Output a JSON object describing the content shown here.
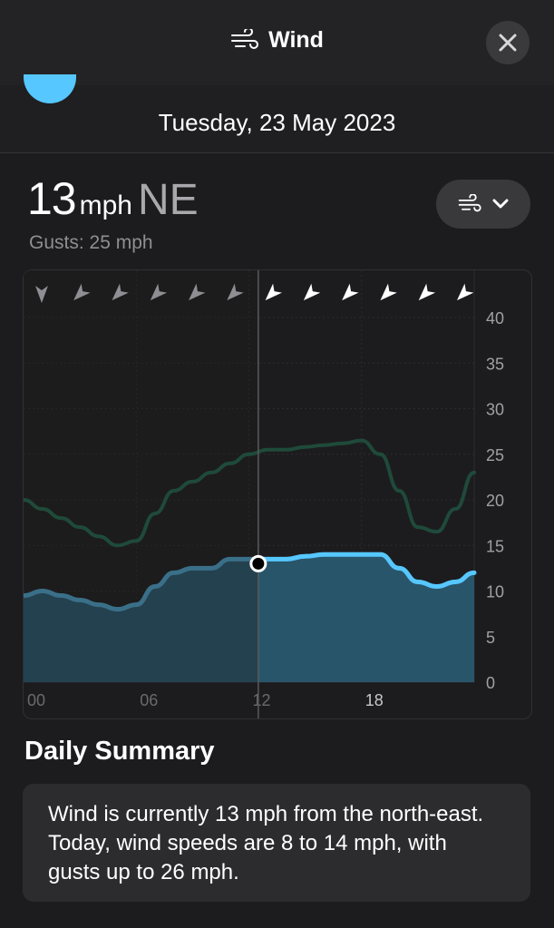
{
  "header": {
    "title": "Wind",
    "close_icon": "close-icon",
    "title_icon": "wind-icon"
  },
  "date": {
    "label": "Tuesday, 23 May 2023"
  },
  "current": {
    "speed": "13",
    "unit": "mph",
    "direction": "NE",
    "gusts": "Gusts: 25 mph"
  },
  "metric_selector": {
    "icon": "wind-icon",
    "chevron": "chevron-down-icon"
  },
  "colors": {
    "accent": "#56c7ff",
    "gust_line": "#1f4a3a",
    "area": "#2b5f78",
    "background": "#1c1c1e",
    "card": "#2c2c2e"
  },
  "chart_data": {
    "type": "area",
    "x_tick_labels": [
      "00",
      "06",
      "12",
      "18"
    ],
    "y_tick_labels": [
      "0",
      "5",
      "10",
      "15",
      "20",
      "25",
      "30",
      "35",
      "40"
    ],
    "ylim": [
      0,
      40
    ],
    "xlim": [
      0,
      24
    ],
    "grid": true,
    "current_hour": 12.5,
    "current_value": 13,
    "series": [
      {
        "x": [
          0,
          1,
          2,
          3,
          4,
          5,
          6,
          7,
          8,
          9,
          10,
          11,
          12,
          13,
          14,
          15,
          16,
          17,
          18,
          19,
          20,
          21,
          22,
          23,
          24
        ],
        "values": [
          9.5,
          10,
          9.5,
          9,
          8.5,
          8,
          8.5,
          10.5,
          12,
          12.5,
          12.5,
          13.5,
          13.5,
          13.5,
          13.5,
          13.8,
          14,
          14,
          14,
          14,
          12.5,
          11,
          10.5,
          11,
          12
        ]
      },
      {
        "x": [
          0,
          1,
          2,
          3,
          4,
          5,
          6,
          7,
          8,
          9,
          10,
          11,
          12,
          13,
          14,
          15,
          16,
          17,
          18,
          19,
          20,
          21,
          22,
          23,
          24
        ],
        "values": [
          20,
          19,
          18,
          17,
          16,
          15,
          15.5,
          18.5,
          21,
          22,
          23,
          24,
          25,
          25.5,
          25.5,
          25.8,
          26,
          26.2,
          26.5,
          25,
          21,
          17,
          16.5,
          19,
          23
        ]
      }
    ],
    "direction_arrows": [
      "N",
      "NE",
      "NE",
      "NE",
      "NE",
      "NE",
      "NE",
      "NE",
      "NE",
      "NE",
      "NE",
      "NE"
    ]
  },
  "summary": {
    "title": "Daily Summary",
    "text": "Wind is currently 13 mph from the north-east. Today, wind speeds are 8 to 14 mph, with gusts up to 26 mph."
  }
}
